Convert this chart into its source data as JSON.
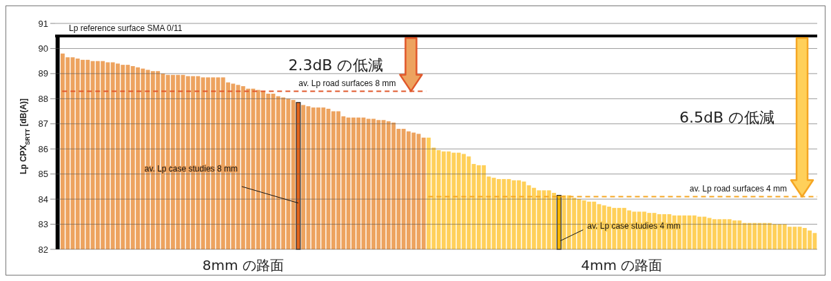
{
  "chart_data": {
    "type": "bar",
    "ylabel": "Lp CPX$_{SRTT}$ [dB(A)]",
    "ylim": [
      82,
      91
    ],
    "yticks": [
      82,
      83,
      84,
      85,
      86,
      87,
      88,
      89,
      90,
      91
    ],
    "grid": "y",
    "categories": [
      null,
      null,
      null,
      null,
      null,
      null,
      null,
      null,
      null,
      null,
      null,
      null,
      null,
      null,
      null,
      null,
      null,
      null,
      null,
      null,
      null,
      null,
      null,
      null,
      null,
      null,
      null,
      null,
      null,
      null,
      null,
      null,
      null,
      null,
      null,
      null,
      null,
      null,
      null,
      null,
      null,
      null,
      null,
      null,
      null,
      null,
      null,
      null,
      null,
      null,
      null,
      null,
      null,
      null,
      null,
      null,
      null,
      null,
      null,
      null,
      null,
      null,
      null,
      null,
      null,
      null,
      null,
      null,
      null,
      null,
      null,
      null,
      null,
      null,
      null,
      null,
      null,
      null,
      null,
      null,
      null,
      null,
      null,
      null,
      null,
      null,
      null,
      null,
      null,
      null,
      null,
      null,
      null,
      null,
      null,
      null,
      null,
      null,
      null,
      null,
      null,
      null,
      null,
      null,
      null,
      null,
      null,
      null,
      null,
      null,
      null,
      null,
      null,
      null,
      null,
      null,
      null,
      null,
      null,
      null,
      null,
      null,
      null,
      null,
      null,
      null,
      null,
      null,
      null,
      null,
      null,
      null,
      null,
      null,
      null,
      null,
      null,
      null,
      null,
      null,
      null,
      null,
      null,
      null,
      null,
      null,
      null,
      null,
      null,
      null,
      null,
      null
    ],
    "series": [
      {
        "color": "#000000",
        "values": [
          90.5,
          null,
          null,
          null,
          null,
          null,
          null,
          null,
          null,
          null,
          null,
          null,
          null,
          null,
          null,
          null,
          null,
          null,
          null,
          null,
          null,
          null,
          null,
          null,
          null,
          null,
          null,
          null,
          null,
          null,
          null,
          null,
          null,
          null,
          null,
          null,
          null,
          null,
          null,
          null,
          null,
          null,
          null,
          null,
          null,
          null,
          null,
          null,
          null,
          null,
          null,
          null,
          null,
          null,
          null,
          null,
          null,
          null,
          null,
          null,
          null,
          null,
          null,
          null,
          null,
          null,
          null,
          null,
          null,
          null,
          null,
          null,
          null,
          null,
          null,
          null,
          null,
          null,
          null,
          null,
          null,
          null,
          null,
          null,
          null,
          null,
          null,
          null,
          null,
          null,
          null,
          null,
          null,
          null,
          null,
          null,
          null,
          null,
          null,
          null,
          null,
          null,
          null,
          null,
          null,
          null,
          null,
          null,
          null,
          null,
          null,
          null,
          null,
          null,
          null,
          null,
          null,
          null,
          null,
          null,
          null,
          null,
          null,
          null,
          null,
          null,
          null,
          null,
          null,
          null,
          null,
          null,
          null,
          null,
          null,
          null,
          null,
          null,
          null,
          null,
          null,
          null,
          null,
          null,
          null,
          null,
          null,
          null,
          null,
          null,
          null,
          null
        ]
      },
      {
        "name": "8mm の路面",
        "color": "#eda35f",
        "values": [
          null,
          89.8,
          89.65,
          89.65,
          89.6,
          89.55,
          89.55,
          89.5,
          89.5,
          89.5,
          89.45,
          89.45,
          89.4,
          89.35,
          89.35,
          89.3,
          89.25,
          89.2,
          89.15,
          89.1,
          89.1,
          89.0,
          88.95,
          88.95,
          88.95,
          88.95,
          88.9,
          88.9,
          88.9,
          88.85,
          88.85,
          88.85,
          88.85,
          88.85,
          88.65,
          88.6,
          88.55,
          88.5,
          88.4,
          88.4,
          88.35,
          88.3,
          88.2,
          88.2,
          88.1,
          88.05,
          88.0,
          87.95,
          null,
          87.75,
          87.7,
          87.65,
          87.65,
          87.65,
          87.6,
          87.5,
          87.5,
          87.3,
          87.25,
          87.25,
          87.25,
          87.25,
          87.2,
          87.2,
          87.15,
          87.15,
          87.1,
          87.05,
          86.8,
          86.8,
          86.7,
          86.65,
          86.6,
          86.45,
          null,
          null,
          null,
          null,
          null,
          null,
          null,
          null,
          null,
          null,
          null,
          null,
          null,
          null,
          null,
          null,
          null,
          null,
          null,
          null,
          null,
          null,
          null,
          null,
          null,
          null,
          null,
          null,
          null,
          null,
          null,
          null,
          null,
          null,
          null,
          null,
          null,
          null,
          null,
          null,
          null,
          null,
          null,
          null,
          null,
          null,
          null,
          null,
          null,
          null,
          null,
          null,
          null,
          null,
          null,
          null,
          null,
          null,
          null,
          null,
          null,
          null,
          null,
          null,
          null,
          null,
          null,
          null,
          null,
          null,
          null,
          null,
          null,
          null,
          null,
          null,
          null,
          null
        ]
      },
      {
        "name": "4mm の路面",
        "color": "#ffd05a",
        "values": [
          null,
          null,
          null,
          null,
          null,
          null,
          null,
          null,
          null,
          null,
          null,
          null,
          null,
          null,
          null,
          null,
          null,
          null,
          null,
          null,
          null,
          null,
          null,
          null,
          null,
          null,
          null,
          null,
          null,
          null,
          null,
          null,
          null,
          null,
          null,
          null,
          null,
          null,
          null,
          null,
          null,
          null,
          null,
          null,
          null,
          null,
          null,
          null,
          null,
          null,
          null,
          null,
          null,
          null,
          null,
          null,
          null,
          null,
          null,
          null,
          null,
          null,
          null,
          null,
          null,
          null,
          null,
          null,
          null,
          null,
          null,
          null,
          null,
          null,
          86.45,
          86.05,
          85.95,
          85.9,
          85.9,
          85.85,
          85.85,
          85.8,
          85.7,
          85.4,
          85.35,
          85.35,
          84.9,
          84.85,
          84.8,
          84.8,
          84.8,
          84.75,
          84.75,
          84.7,
          84.55,
          84.45,
          84.35,
          84.35,
          84.35,
          84.25,
          null,
          84.15,
          84.15,
          84.05,
          84.0,
          83.95,
          83.9,
          83.9,
          83.8,
          83.75,
          83.7,
          83.65,
          83.65,
          83.65,
          83.55,
          83.5,
          83.5,
          83.5,
          83.45,
          83.45,
          83.4,
          83.4,
          83.4,
          83.35,
          83.35,
          83.35,
          83.35,
          83.35,
          83.3,
          83.3,
          83.25,
          83.2,
          83.2,
          83.2,
          83.2,
          83.15,
          83.15,
          83.05,
          83.05,
          83.05,
          83.05,
          83.05,
          83.05,
          83.0,
          83.0,
          83.0,
          82.9,
          82.9,
          82.9,
          82.85,
          82.75,
          82.65
        ]
      },
      {
        "color": "#e0651f",
        "values": [
          null,
          null,
          null,
          null,
          null,
          null,
          null,
          null,
          null,
          null,
          null,
          null,
          null,
          null,
          null,
          null,
          null,
          null,
          null,
          null,
          null,
          null,
          null,
          null,
          null,
          null,
          null,
          null,
          null,
          null,
          null,
          null,
          null,
          null,
          null,
          null,
          null,
          null,
          null,
          null,
          null,
          null,
          null,
          null,
          null,
          null,
          null,
          null,
          87.85,
          null,
          null,
          null,
          null,
          null,
          null,
          null,
          null,
          null,
          null,
          null,
          null,
          null,
          null,
          null,
          null,
          null,
          null,
          null,
          null,
          null,
          null,
          null,
          null,
          null,
          null,
          null,
          null,
          null,
          null,
          null,
          null,
          null,
          null,
          null,
          null,
          null,
          null,
          null,
          null,
          null,
          null,
          null,
          null,
          null,
          null,
          null,
          null,
          null,
          null,
          null,
          null,
          null,
          null,
          null,
          null,
          null,
          null,
          null,
          null,
          null,
          null,
          null,
          null,
          null,
          null,
          null,
          null,
          null,
          null,
          null,
          null,
          null,
          null,
          null,
          null,
          null,
          null,
          null,
          null,
          null,
          null,
          null,
          null,
          null,
          null,
          null,
          null,
          null,
          null,
          null,
          null,
          null,
          null,
          null,
          null,
          null,
          null,
          null,
          null,
          null,
          null,
          null
        ]
      },
      {
        "color": "#f5b400",
        "values": [
          null,
          null,
          null,
          null,
          null,
          null,
          null,
          null,
          null,
          null,
          null,
          null,
          null,
          null,
          null,
          null,
          null,
          null,
          null,
          null,
          null,
          null,
          null,
          null,
          null,
          null,
          null,
          null,
          null,
          null,
          null,
          null,
          null,
          null,
          null,
          null,
          null,
          null,
          null,
          null,
          null,
          null,
          null,
          null,
          null,
          null,
          null,
          null,
          null,
          null,
          null,
          null,
          null,
          null,
          null,
          null,
          null,
          null,
          null,
          null,
          null,
          null,
          null,
          null,
          null,
          null,
          null,
          null,
          null,
          null,
          null,
          null,
          null,
          null,
          null,
          null,
          null,
          null,
          null,
          null,
          null,
          null,
          null,
          null,
          null,
          null,
          null,
          null,
          null,
          null,
          null,
          null,
          null,
          null,
          null,
          null,
          null,
          null,
          null,
          null,
          84.15,
          null,
          null,
          null,
          null,
          null,
          null,
          null,
          null,
          null,
          null,
          null,
          null,
          null,
          null,
          null,
          null,
          null,
          null,
          null,
          null,
          null,
          null,
          null,
          null,
          null,
          null,
          null,
          null,
          null,
          null,
          null,
          null,
          null,
          null,
          null,
          null,
          null,
          null,
          null,
          null,
          null,
          null,
          null,
          null,
          null,
          null,
          null,
          null,
          null,
          null,
          null
        ]
      }
    ],
    "ref_lines": [
      {
        "axis": "y",
        "value": 90.5,
        "label": "Lp reference surface SMA 0/11",
        "color": "#000000",
        "line_style": "solid"
      },
      {
        "axis": "y",
        "value": 88.3,
        "label": "av. Lp road surfaces 8 mm",
        "color": "#e0572a",
        "line_style": "dashed"
      },
      {
        "axis": "y",
        "value": 84.1,
        "label": "av. Lp road surfaces 4 mm",
        "color": "#f5a623",
        "line_style": "dashed"
      }
    ],
    "annotations": [
      "2.3dB の低減",
      "6.5dB の低減",
      "av. Lp case studies 8 mm",
      "av. Lp case studies 4 mm"
    ]
  }
}
